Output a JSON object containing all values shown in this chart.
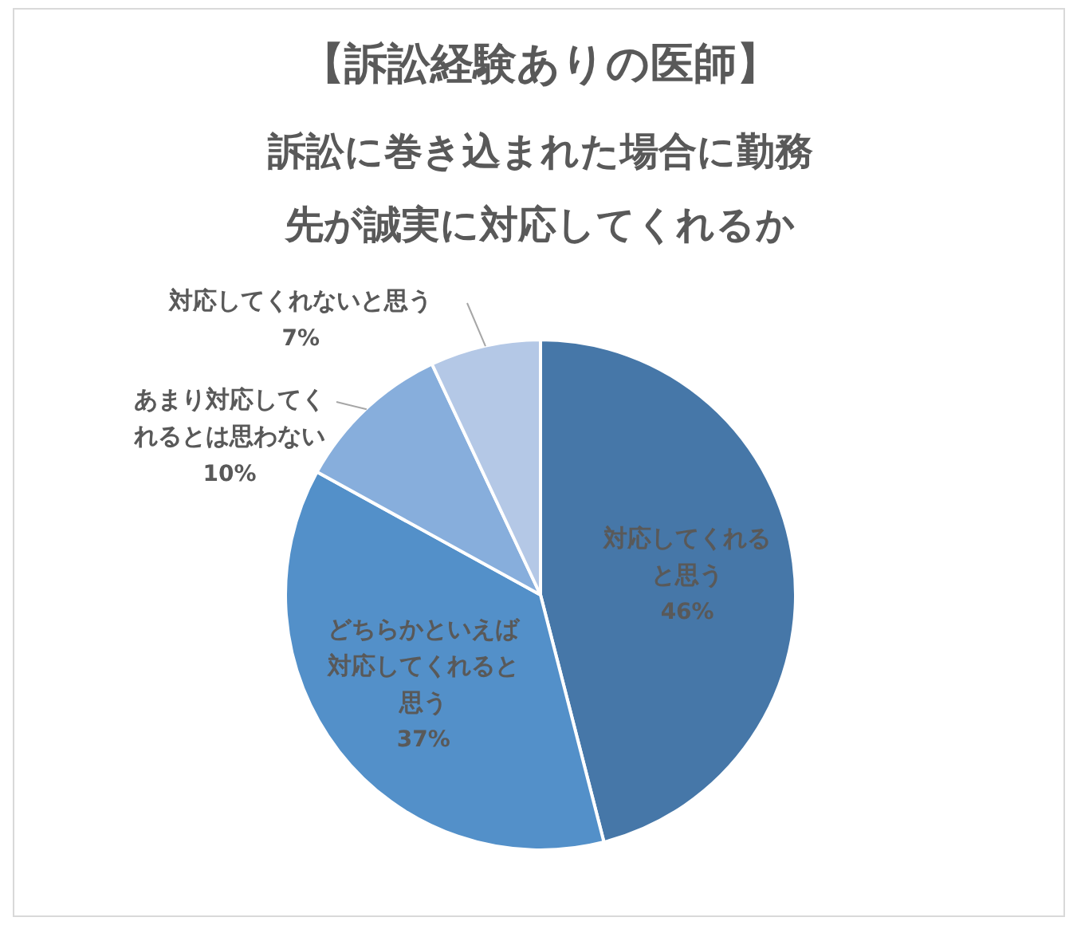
{
  "chart_data": {
    "type": "pie",
    "title": "【訴訟経験ありの医師】",
    "subtitle": "訴訟に巻き込まれた場合に勤務先が誠実に対応してくれるか",
    "categories": [
      "対応してくれると思う",
      "どちらかといえば対応してくれると思う",
      "あまり対応してくれるとは思わない",
      "対応してくれないと思う"
    ],
    "values": [
      46,
      37,
      10,
      7
    ],
    "value_labels": [
      "46%",
      "37%",
      "10%",
      "7%"
    ],
    "colors": [
      "#4677a8",
      "#5390c9",
      "#87aedc",
      "#b4c8e6"
    ]
  }
}
